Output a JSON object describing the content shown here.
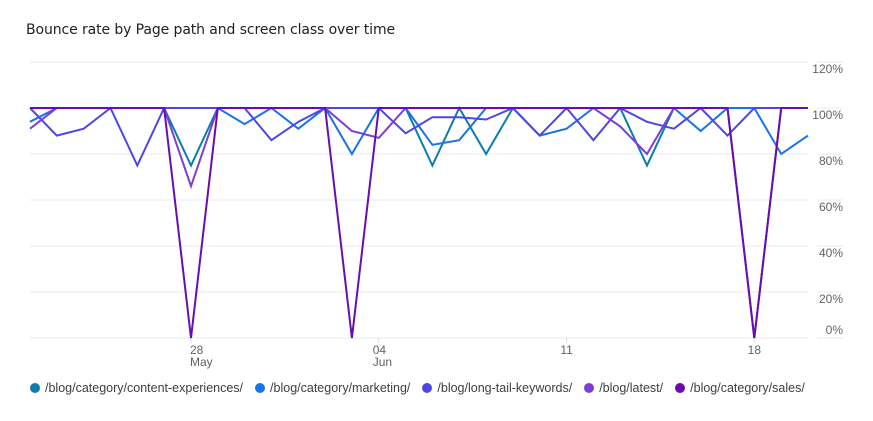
{
  "card": {
    "title": "Bounce rate by Page path and screen class over time"
  },
  "chart_data": {
    "type": "line",
    "title": "Bounce rate by Page path and screen class over time",
    "xlabel": "",
    "ylabel": "",
    "ylim": [
      0,
      120
    ],
    "y_ticks": [
      "120%",
      "100%",
      "80%",
      "60%",
      "40%",
      "20%",
      "0%"
    ],
    "x_ticks": [
      {
        "index": 6,
        "day": "28",
        "month": "May"
      },
      {
        "index": 13,
        "day": "04",
        "month": "Jun"
      },
      {
        "index": 20,
        "day": "11",
        "month": ""
      },
      {
        "index": 27,
        "day": "18",
        "month": ""
      }
    ],
    "x": [
      "22 May",
      "23 May",
      "24 May",
      "25 May",
      "26 May",
      "27 May",
      "28 May",
      "29 May",
      "30 May",
      "31 May",
      "01 Jun",
      "02 Jun",
      "03 Jun",
      "04 Jun",
      "05 Jun",
      "06 Jun",
      "07 Jun",
      "08 Jun",
      "09 Jun",
      "10 Jun",
      "11 Jun",
      "12 Jun",
      "13 Jun",
      "14 Jun",
      "15 Jun",
      "16 Jun",
      "17 Jun",
      "18 Jun",
      "19 Jun",
      "20 Jun"
    ],
    "grid": true,
    "legend_position": "bottom",
    "series": [
      {
        "name": "/blog/category/content-experiences/",
        "color": "#0b7dab",
        "values": [
          100,
          100,
          100,
          100,
          100,
          100,
          75,
          100,
          100,
          100,
          100,
          100,
          100,
          100,
          100,
          75,
          100,
          80,
          100,
          100,
          100,
          100,
          100,
          75,
          100,
          100,
          100,
          100,
          100,
          100
        ]
      },
      {
        "name": "/blog/category/marketing/",
        "color": "#1a73e8",
        "values": [
          94,
          100,
          100,
          100,
          100,
          100,
          100,
          100,
          93,
          100,
          91,
          100,
          80,
          100,
          100,
          84,
          86,
          100,
          100,
          88,
          91,
          100,
          100,
          100,
          100,
          90,
          100,
          100,
          80,
          88
        ]
      },
      {
        "name": "/blog/long-tail-keywords/",
        "color": "#4f46e5",
        "values": [
          100,
          88,
          91,
          100,
          75,
          100,
          100,
          100,
          100,
          86,
          94,
          100,
          100,
          100,
          89,
          96,
          96,
          95,
          100,
          88,
          100,
          86,
          100,
          94,
          91,
          100,
          88,
          100,
          100,
          100
        ]
      },
      {
        "name": "/blog/latest/",
        "color": "#7b3fd4",
        "values": [
          91,
          100,
          100,
          100,
          100,
          100,
          66,
          100,
          100,
          100,
          100,
          100,
          90,
          87,
          100,
          100,
          100,
          100,
          100,
          100,
          100,
          100,
          92,
          80,
          100,
          100,
          100,
          0,
          100,
          100
        ]
      },
      {
        "name": "/blog/category/sales/",
        "color": "#6a0dad",
        "values": [
          100,
          100,
          100,
          100,
          100,
          100,
          0,
          100,
          100,
          100,
          100,
          100,
          0,
          100,
          100,
          100,
          100,
          100,
          100,
          100,
          100,
          100,
          100,
          100,
          100,
          100,
          100,
          0,
          100,
          100
        ]
      }
    ]
  },
  "legend": {
    "items": [
      {
        "label": "/blog/category/content-experiences/",
        "color": "#0b7dab"
      },
      {
        "label": "/blog/category/marketing/",
        "color": "#1a73e8"
      },
      {
        "label": "/blog/long-tail-keywords/",
        "color": "#4f46e5"
      },
      {
        "label": "/blog/latest/",
        "color": "#7b3fd4"
      },
      {
        "label": "/blog/category/sales/",
        "color": "#6a0dad"
      }
    ]
  }
}
